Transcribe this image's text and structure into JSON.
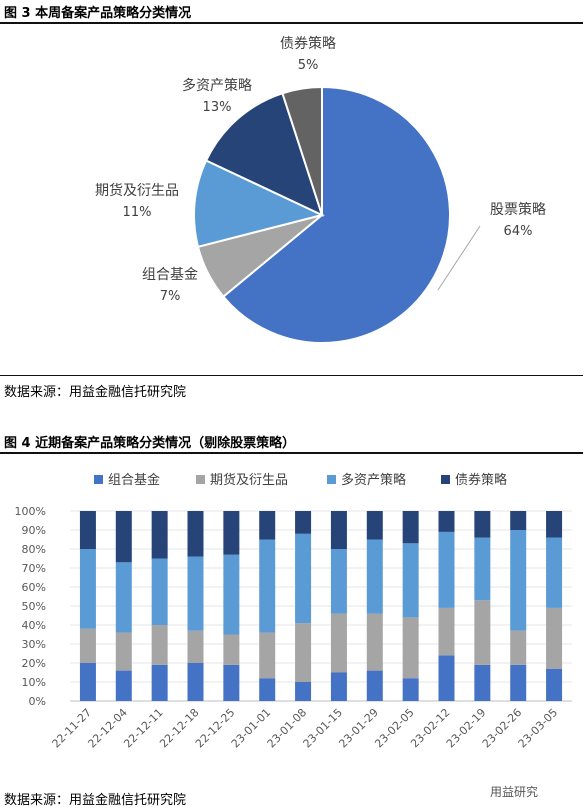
{
  "fig3": {
    "title": "图 3  本周备案产品策略分类情况",
    "source": "数据来源：用益金融信托研究院",
    "chart_data": {
      "type": "pie",
      "slices": [
        {
          "name": "股票策略",
          "value": 64,
          "label": "64%",
          "color": "#4472C4"
        },
        {
          "name": "组合基金",
          "value": 7,
          "label": "7%",
          "color": "#A5A5A5"
        },
        {
          "name": "期货及衍生品",
          "value": 11,
          "label": "11%",
          "color": "#5B9BD5"
        },
        {
          "name": "多资产策略",
          "value": 13,
          "label": "13%",
          "color": "#264478"
        },
        {
          "name": "债券策略",
          "value": 5,
          "label": "5%",
          "color": "#636363"
        }
      ]
    }
  },
  "fig4": {
    "title": "图 4  近期备案产品策略分类情况（剔除股票策略）",
    "source": "数据来源：用益金融信托研究院",
    "chart_data": {
      "type": "bar",
      "stacked": true,
      "ylim": [
        0,
        100
      ],
      "yticks": [
        "0%",
        "10%",
        "20%",
        "30%",
        "40%",
        "50%",
        "60%",
        "70%",
        "80%",
        "90%",
        "100%"
      ],
      "legend_position": "top",
      "categories": [
        "22-11-27",
        "22-12-04",
        "22-12-11",
        "22-12-18",
        "22-12-25",
        "23-01-01",
        "23-01-08",
        "23-01-15",
        "23-01-29",
        "23-02-05",
        "23-02-12",
        "23-02-19",
        "23-02-26",
        "23-03-05"
      ],
      "series": [
        {
          "name": "组合基金",
          "color": "#4472C4",
          "values": [
            20,
            16,
            19,
            20,
            19,
            12,
            10,
            15,
            16,
            12,
            24,
            19,
            19,
            17
          ]
        },
        {
          "name": "期货及衍生品",
          "color": "#A5A5A5",
          "values": [
            18,
            20,
            21,
            17,
            16,
            24,
            31,
            31,
            30,
            32,
            25,
            34,
            18,
            32
          ]
        },
        {
          "name": "多资产策略",
          "color": "#5B9BD5",
          "values": [
            42,
            37,
            35,
            39,
            42,
            49,
            47,
            34,
            39,
            39,
            40,
            33,
            53,
            37
          ]
        },
        {
          "name": "债券策略",
          "color": "#264478",
          "values": [
            20,
            27,
            25,
            24,
            23,
            15,
            12,
            20,
            15,
            17,
            11,
            14,
            10,
            14
          ]
        }
      ]
    }
  },
  "watermark": "用益研究"
}
